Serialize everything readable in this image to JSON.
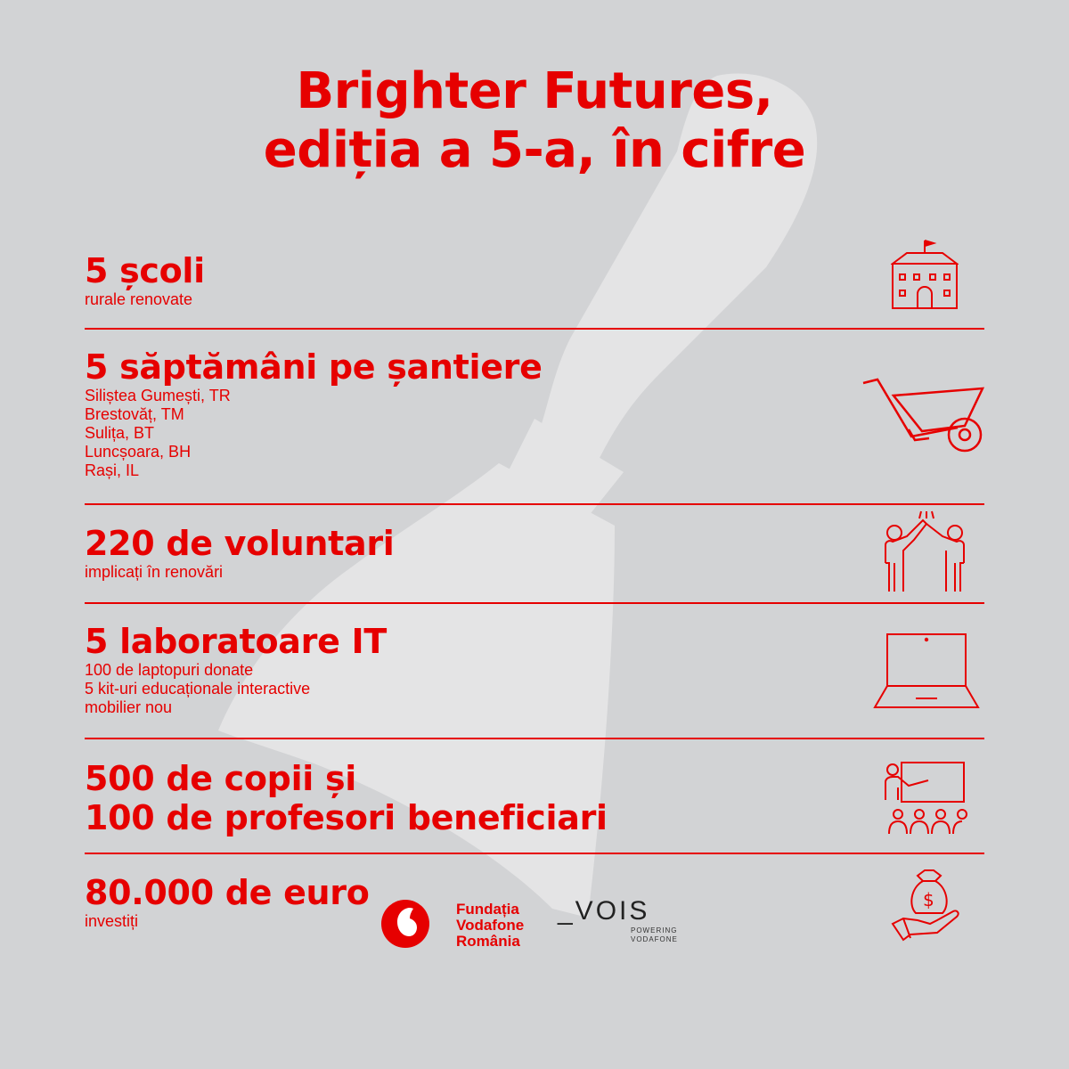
{
  "header": {
    "title_line1": "Brighter Futures,",
    "title_line2": "ediția a 5-a, în cifre"
  },
  "stats": [
    {
      "headline": "5 școli",
      "details": [
        "rurale renovate"
      ],
      "icon": "school-building-icon"
    },
    {
      "headline": "5 săptămâni pe șantiere",
      "details": [
        "Siliștea Gumești, TR",
        "Brestovăț, TM",
        "Sulița, BT",
        "Luncșoara, BH",
        "Rași, IL"
      ],
      "icon": "wheelbarrow-icon"
    },
    {
      "headline": "220 de voluntari",
      "details": [
        "implicați în renovări"
      ],
      "icon": "volunteers-high-five-icon"
    },
    {
      "headline": "5 laboratoare IT",
      "details": [
        "100 de laptopuri donate",
        "5 kit-uri educaționale interactive",
        "mobilier nou"
      ],
      "icon": "laptop-icon"
    },
    {
      "headline_lines": [
        "500 de copii și",
        "100 de profesori beneficiari"
      ],
      "details": [],
      "icon": "teacher-classroom-icon"
    },
    {
      "headline": "80.000 de euro",
      "details": [
        "investiți"
      ],
      "icon": "money-bag-hand-icon"
    }
  ],
  "footer": {
    "foundation_lines": [
      "Fundația",
      "Vodafone",
      "România"
    ],
    "vois_main": "_VOIS",
    "vois_sub": [
      "POWERING",
      "VODAFONE"
    ]
  },
  "colors": {
    "accent": "#e60000",
    "background": "#d2d3d5",
    "watermark": "#e6e6e6"
  }
}
